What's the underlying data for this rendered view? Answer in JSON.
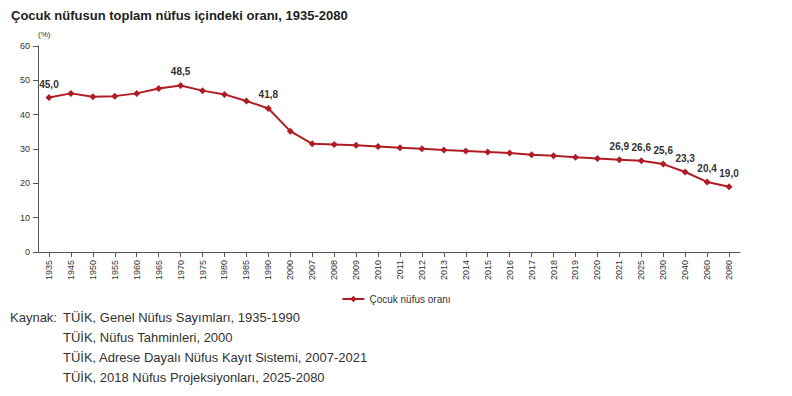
{
  "chart_data": {
    "type": "line",
    "title": "Çocuk nüfusun toplam nüfus içindeki oranı, 1935-2080",
    "y_label": "(%)",
    "categories": [
      "1935",
      "1945",
      "1950",
      "1955",
      "1960",
      "1965",
      "1970",
      "1975",
      "1980",
      "1985",
      "1990",
      "2000",
      "2007",
      "2008",
      "2009",
      "2010",
      "2011",
      "2012",
      "2013",
      "2014",
      "2015",
      "2016",
      "2017",
      "2018",
      "2019",
      "2020",
      "2021",
      "2025",
      "2030",
      "2040",
      "2060",
      "2080"
    ],
    "series": [
      {
        "name": "Çocuk nüfus oranı",
        "color": "#b01c24",
        "marker": "diamond",
        "values": [
          45.0,
          46.2,
          45.2,
          45.4,
          46.2,
          47.6,
          48.5,
          47.0,
          45.9,
          44.0,
          41.8,
          35.2,
          31.5,
          31.3,
          31.1,
          30.7,
          30.4,
          30.1,
          29.7,
          29.4,
          29.1,
          28.8,
          28.3,
          28.0,
          27.6,
          27.2,
          26.9,
          26.6,
          25.6,
          23.3,
          20.4,
          19.0
        ],
        "value_labels": [
          "45,0",
          null,
          null,
          null,
          null,
          null,
          "48,5",
          null,
          null,
          null,
          "41,8",
          null,
          null,
          null,
          null,
          null,
          null,
          null,
          null,
          null,
          null,
          null,
          null,
          null,
          null,
          null,
          "26,9",
          "26,6",
          "25,6",
          "23,3",
          "20,4",
          "19,0"
        ]
      }
    ],
    "data_labels": true,
    "ylim": [
      0,
      60
    ],
    "yticks": [
      0,
      10,
      20,
      30,
      40,
      50,
      60
    ],
    "grid": false,
    "legend": "bottom",
    "source": {
      "label": "Kaynak:",
      "lines": [
        "TÜİK, Genel Nüfus Sayımları, 1935-1990",
        "TÜİK, Nüfus Tahminleri, 2000",
        "TÜİK, Adrese Dayalı Nüfus Kayıt Sistemi, 2007-2021",
        "TÜİK, 2018 Nüfus Projeksiyonları, 2025-2080"
      ]
    }
  }
}
